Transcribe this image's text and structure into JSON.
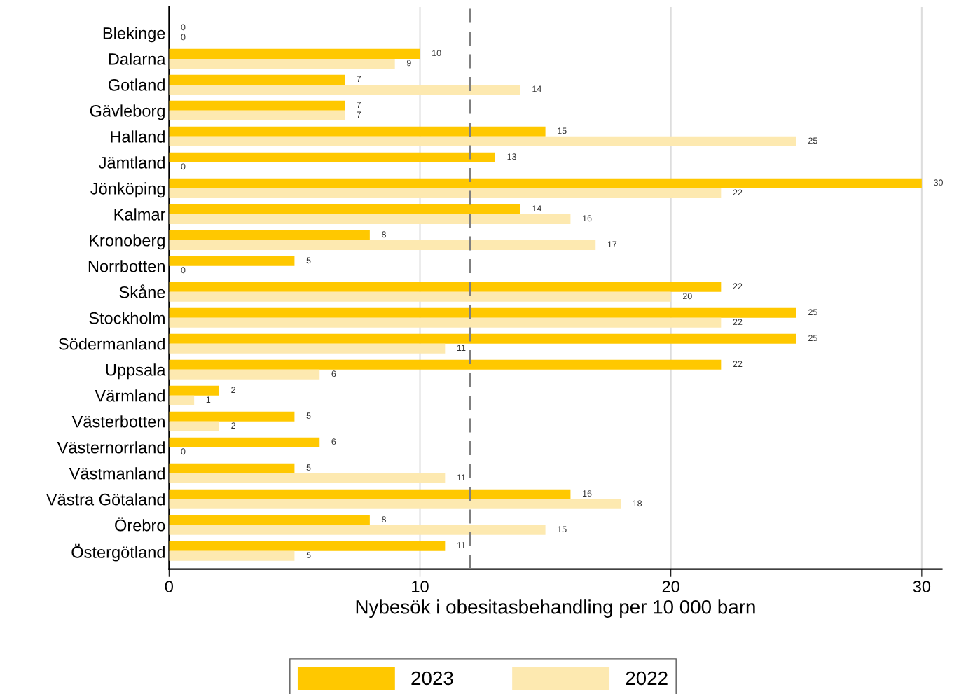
{
  "chart_data": {
    "type": "bar",
    "orientation": "horizontal",
    "xlabel": "Nybesök i obesitasbehandling per 10 000 barn",
    "categories": [
      "Blekinge",
      "Dalarna",
      "Gotland",
      "Gävleborg",
      "Halland",
      "Jämtland",
      "Jönköping",
      "Kalmar",
      "Kronoberg",
      "Norrbotten",
      "Skåne",
      "Stockholm",
      "Södermanland",
      "Uppsala",
      "Värmland",
      "Västerbotten",
      "Västernorrland",
      "Västmanland",
      "Västra Götaland",
      "Örebro",
      "Östergötland"
    ],
    "series": [
      {
        "name": "2023",
        "color": "#ffc800",
        "values": [
          0,
          10,
          7,
          7,
          15,
          13,
          30,
          14,
          8,
          5,
          22,
          25,
          25,
          22,
          2,
          5,
          6,
          5,
          16,
          8,
          11
        ]
      },
      {
        "name": "2022",
        "color": "#fde9b0",
        "values": [
          0,
          9,
          14,
          7,
          25,
          0,
          22,
          16,
          17,
          0,
          20,
          22,
          11,
          6,
          1,
          2,
          0,
          11,
          18,
          15,
          5
        ]
      }
    ],
    "xlim": [
      0,
      30.8
    ],
    "xticks": [
      0,
      10,
      20,
      30
    ],
    "grid": "x",
    "data_labels": true,
    "legend": "bottom",
    "ref_lines": [
      {
        "axis": "x",
        "value": 12,
        "color": "#7f7f7f",
        "line_style": "dashed"
      }
    ]
  }
}
